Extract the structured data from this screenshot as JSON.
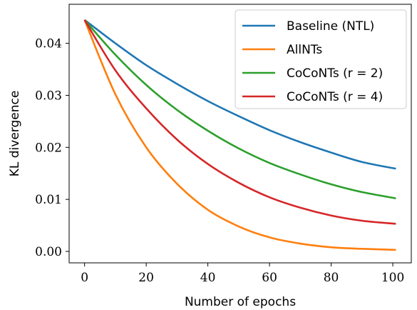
{
  "chart_data": {
    "type": "line",
    "title": "",
    "xlabel": "Number of epochs",
    "ylabel": "KL divergence",
    "xlim": [
      -5,
      106
    ],
    "ylim": [
      -0.0022,
      0.0475
    ],
    "xticks": [
      0,
      20,
      40,
      60,
      80,
      100
    ],
    "yticks": [
      0.0,
      0.01,
      0.02,
      0.03,
      0.04
    ],
    "xtick_labels": [
      "0",
      "20",
      "40",
      "60",
      "80",
      "100"
    ],
    "ytick_labels": [
      "0.00",
      "0.01",
      "0.02",
      "0.03",
      "0.04"
    ],
    "grid": false,
    "legend_position": "top-right",
    "x": [
      0,
      10,
      20,
      30,
      40,
      50,
      60,
      70,
      80,
      90,
      101
    ],
    "series": [
      {
        "name": "Baseline (NTL)",
        "color": "#1f77b4",
        "values": [
          0.0445,
          0.04,
          0.0358,
          0.0322,
          0.0289,
          0.026,
          0.0233,
          0.021,
          0.019,
          0.0172,
          0.0159
        ]
      },
      {
        "name": "AllNTs",
        "color": "#ff7f0e",
        "values": [
          0.0445,
          0.0302,
          0.02,
          0.013,
          0.008,
          0.0048,
          0.0027,
          0.0015,
          0.0008,
          0.0005,
          0.0003
        ]
      },
      {
        "name": "CoCoNTs (r = 2)",
        "color": "#2ca02c",
        "values": [
          0.0445,
          0.0378,
          0.032,
          0.0272,
          0.0232,
          0.0198,
          0.017,
          0.0148,
          0.0129,
          0.0114,
          0.0102
        ]
      },
      {
        "name": "CoCoNTs (r = 4)",
        "color": "#d62728",
        "values": [
          0.0445,
          0.0348,
          0.0275,
          0.0215,
          0.0168,
          0.0132,
          0.0104,
          0.0084,
          0.0069,
          0.0059,
          0.0053
        ]
      }
    ]
  }
}
